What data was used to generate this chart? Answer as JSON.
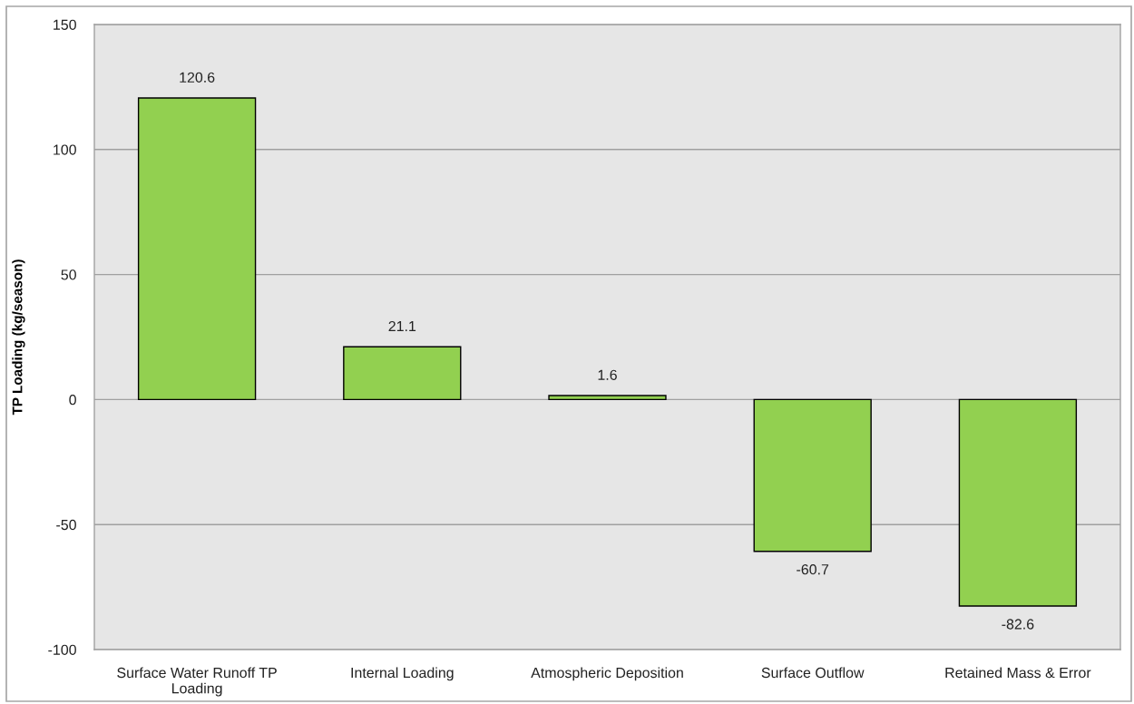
{
  "chart_data": {
    "type": "bar",
    "ylabel": "TP Loading (kg/season)",
    "categories": [
      "Surface Water Runoff TP\nLoading",
      "Internal Loading",
      "Atmospheric Deposition",
      "Surface Outflow",
      "Retained Mass & Error"
    ],
    "values": [
      120.6,
      21.1,
      1.6,
      -60.7,
      -82.6
    ],
    "color": "#92d050",
    "ylim": [
      -100,
      150
    ],
    "yticks": [
      -100,
      -50,
      0,
      50,
      100,
      150
    ],
    "grid": "y",
    "data_labels": true
  }
}
